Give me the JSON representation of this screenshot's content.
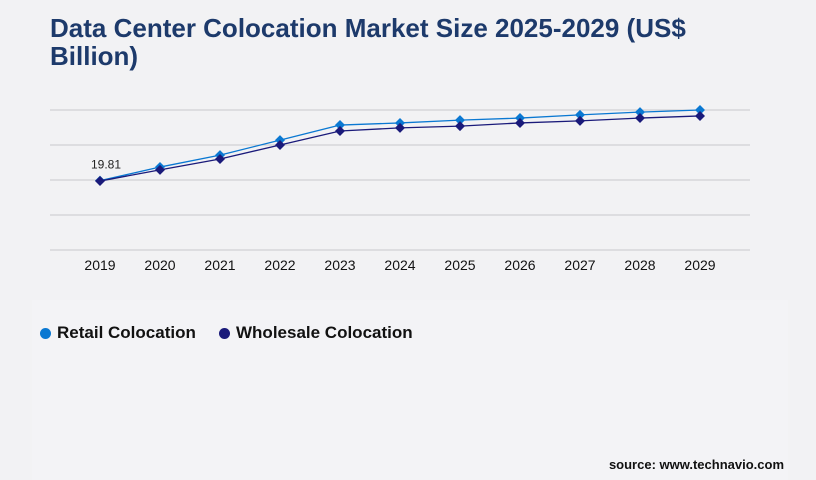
{
  "title": "Data Center Colocation Market Size 2025-2029 (US$ Billion)",
  "source": "source: www.technavio.com",
  "chart_data": {
    "type": "line",
    "title": "Data Center Colocation Market Size 2025-2029 (US$ Billion)",
    "x": [
      "2019",
      "2020",
      "2021",
      "2022",
      "2023",
      "2024",
      "2025",
      "2026",
      "2027",
      "2028",
      "2029"
    ],
    "ylim": [
      0,
      40
    ],
    "grid": true,
    "legend": "bottom-left",
    "series": [
      {
        "name": "Retail Colocation",
        "color": "#0a78d2",
        "values": [
          19.81,
          23.7,
          27.1,
          31.4,
          35.7,
          36.3,
          37.1,
          37.7,
          38.6,
          39.4,
          40.0
        ]
      },
      {
        "name": "Wholesale Colocation",
        "color": "#1a1a7a",
        "values": [
          19.7,
          22.9,
          26.0,
          30.0,
          34.0,
          34.9,
          35.4,
          36.3,
          36.9,
          37.7,
          38.3
        ]
      }
    ],
    "annotations": [
      {
        "x": "2019",
        "text": "19.81"
      }
    ]
  }
}
